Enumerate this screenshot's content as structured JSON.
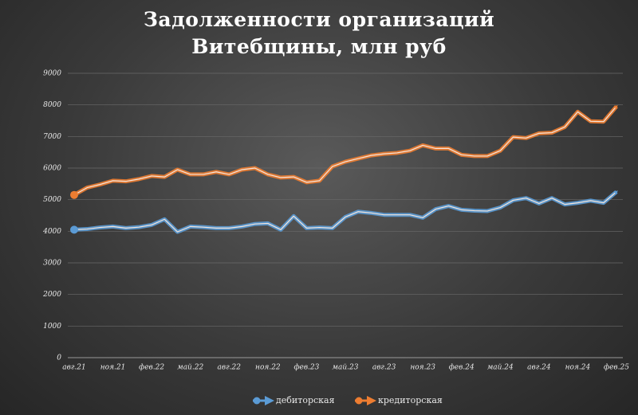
{
  "chart_data": {
    "type": "line",
    "title": "Задолженности организаций Витебщины, млн руб",
    "categories": [
      "авг.21",
      null,
      null,
      "ноя.21",
      null,
      null,
      "фев.22",
      null,
      null,
      "май.22",
      null,
      null,
      "авг.22",
      null,
      null,
      "ноя.22",
      null,
      null,
      "фев.23",
      null,
      null,
      "май.23",
      null,
      null,
      "авг.23",
      null,
      null,
      "ноя.23",
      null,
      null,
      "фев.24",
      null,
      null,
      "май.24",
      null,
      null,
      "авг.24",
      null,
      null,
      "ноя.24",
      null,
      null,
      "фев.25"
    ],
    "series": [
      {
        "name": "дебиторская",
        "color": "#5b9bd5",
        "values": [
          4050,
          4070,
          4120,
          4150,
          4100,
          4130,
          4200,
          4380,
          3980,
          4150,
          4130,
          4100,
          4100,
          4150,
          4230,
          4250,
          4050,
          4480,
          4100,
          4120,
          4100,
          4450,
          4620,
          4580,
          4520,
          4520,
          4520,
          4430,
          4700,
          4800,
          4680,
          4650,
          4640,
          4750,
          4980,
          5050,
          4880,
          5050,
          4850,
          4900,
          4970,
          4900,
          5250
        ]
      },
      {
        "name": "кредиторская",
        "color": "#ed7d31",
        "values": [
          5150,
          5380,
          5480,
          5600,
          5580,
          5650,
          5750,
          5720,
          5950,
          5800,
          5800,
          5880,
          5800,
          5950,
          6000,
          5800,
          5700,
          5720,
          5550,
          5600,
          6050,
          6200,
          6300,
          6400,
          6450,
          6480,
          6550,
          6720,
          6620,
          6620,
          6420,
          6380,
          6380,
          6550,
          6980,
          6950,
          7100,
          7120,
          7300,
          7780,
          7480,
          7470,
          7950
        ]
      }
    ],
    "ylim": [
      0,
      9000
    ],
    "yticks": [
      0,
      1000,
      2000,
      3000,
      4000,
      5000,
      6000,
      7000,
      8000,
      9000
    ],
    "grid": true
  }
}
